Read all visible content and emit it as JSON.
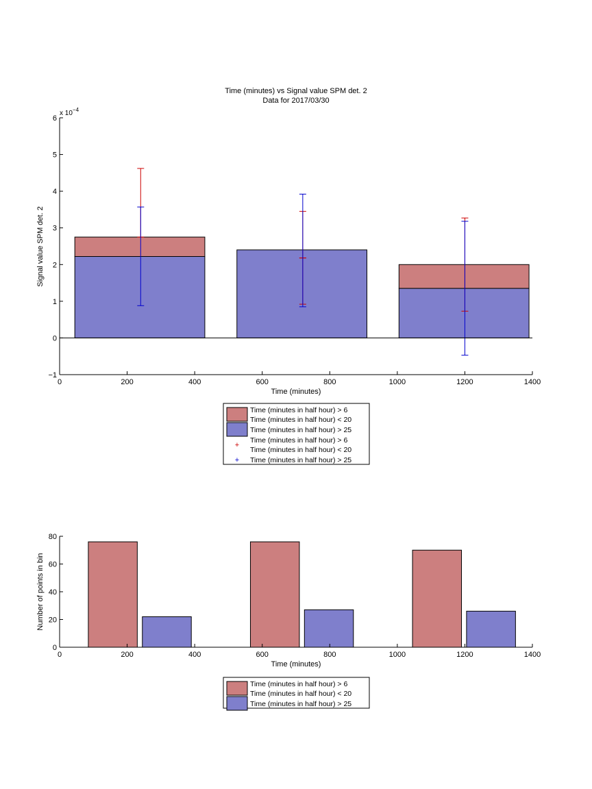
{
  "chart_data": [
    {
      "type": "bar",
      "title": "Time (minutes) vs Signal value SPM det. 2",
      "subtitle": "Data for 2017/03/30",
      "xlabel": "Time (minutes)",
      "ylabel": "Signal value SPM det. 2",
      "y_exponent_label": "x 10",
      "y_exponent_power": "−4",
      "y_scale": 0.0001,
      "xlim": [
        0,
        1400
      ],
      "ylim": [
        -1,
        6
      ],
      "xticks": [
        0,
        200,
        400,
        600,
        800,
        1000,
        1200,
        1400
      ],
      "yticks": [
        -1,
        0,
        1,
        2,
        3,
        4,
        5,
        6
      ],
      "grid": false,
      "legend_position": "below",
      "bars": [
        {
          "x_start": 45,
          "x_end": 430,
          "red_top": 2.75,
          "blue_top": 2.22
        },
        {
          "x_start": 525,
          "x_end": 910,
          "red_top": 2.4,
          "blue_top": 2.4
        },
        {
          "x_start": 1005,
          "x_end": 1390,
          "red_top": 2.0,
          "blue_top": 1.35
        }
      ],
      "errorbars": [
        {
          "series": "red",
          "x": 240,
          "low": 2.75,
          "high": 4.62
        },
        {
          "series": "blue",
          "x": 240,
          "low": 0.88,
          "high": 3.57
        },
        {
          "series": "red",
          "x": 720,
          "low": 0.92,
          "high": 3.45
        },
        {
          "series": "red",
          "x": 720,
          "low": 2.18,
          "high": 2.18
        },
        {
          "series": "blue",
          "x": 720,
          "low": 0.85,
          "high": 3.92
        },
        {
          "series": "red",
          "x": 1200,
          "low": 0.73,
          "high": 3.27
        },
        {
          "series": "blue",
          "x": 1200,
          "low": -0.47,
          "high": 3.18
        }
      ],
      "legend": [
        {
          "label_line1": "Time (minutes in half hour) > 6",
          "label_line2": "Time (minutes in half hour) < 20",
          "marker": "red-patch"
        },
        {
          "label_line1": "Time (minutes in half hour) > 25",
          "marker": "blue-patch"
        },
        {
          "label_line1": "Time (minutes in half hour) > 6",
          "label_line2": "Time (minutes in half hour) < 20",
          "marker": "red-plus"
        },
        {
          "label_line1": "Time (minutes in half hour) > 25",
          "marker": "blue-plus"
        }
      ],
      "colors": {
        "red": "#cc7f7f",
        "blue": "#7f7fcc",
        "red_err": "#cc0000",
        "blue_err": "#0000cc"
      }
    },
    {
      "type": "bar",
      "xlabel": "Time (minutes)",
      "ylabel": "Number of points in bin",
      "xlim": [
        0,
        1400
      ],
      "ylim": [
        0,
        80
      ],
      "xticks": [
        0,
        200,
        400,
        600,
        800,
        1000,
        1200,
        1400
      ],
      "yticks": [
        0,
        20,
        40,
        60,
        80
      ],
      "grid": false,
      "legend_position": "below",
      "series": [
        {
          "color": "red",
          "bins": [
            {
              "x_start": 85,
              "x_end": 230,
              "value": 76
            },
            {
              "x_start": 565,
              "x_end": 710,
              "value": 76
            },
            {
              "x_start": 1045,
              "x_end": 1190,
              "value": 70
            }
          ]
        },
        {
          "color": "blue",
          "bins": [
            {
              "x_start": 245,
              "x_end": 390,
              "value": 22
            },
            {
              "x_start": 725,
              "x_end": 870,
              "value": 27
            },
            {
              "x_start": 1205,
              "x_end": 1350,
              "value": 26
            }
          ]
        }
      ],
      "legend": [
        {
          "label_line1": "Time (minutes in half hour) > 6",
          "label_line2": "Time (minutes in half hour) < 20",
          "marker": "red-patch"
        },
        {
          "label_line1": "Time (minutes in half hour) > 25",
          "marker": "blue-patch"
        }
      ],
      "colors": {
        "red": "#cc7f7f",
        "blue": "#7f7fcc"
      }
    }
  ]
}
